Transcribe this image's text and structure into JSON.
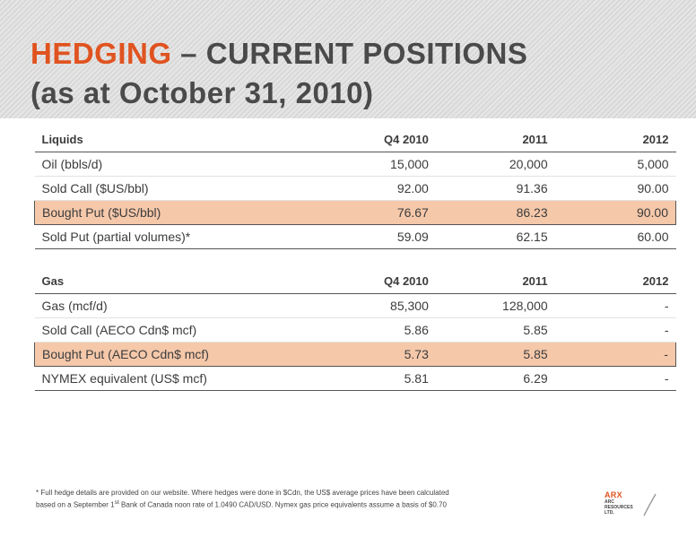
{
  "title": {
    "accent": "HEDGING",
    "rest": " – CURRENT POSITIONS",
    "line2": "(as at October 31, 2010)"
  },
  "liquids": {
    "headers": [
      "Liquids",
      "Q4 2010",
      "2011",
      "2012"
    ],
    "rows": [
      {
        "label": "Oil (bbls/d)",
        "q4_2010": "15,000",
        "y2011": "20,000",
        "y2012": "5,000"
      },
      {
        "label": "Sold Call ($US/bbl)",
        "q4_2010": "92.00",
        "y2011": "91.36",
        "y2012": "90.00"
      },
      {
        "label": "Bought Put ($US/bbl)",
        "q4_2010": "76.67",
        "y2011": "86.23",
        "y2012": "90.00"
      },
      {
        "label": "Sold Put (partial volumes)*",
        "q4_2010": "59.09",
        "y2011": "62.15",
        "y2012": "60.00"
      }
    ]
  },
  "gas": {
    "headers": [
      "Gas",
      "Q4 2010",
      "2011",
      "2012"
    ],
    "rows": [
      {
        "label": "Gas (mcf/d)",
        "q4_2010": "85,300",
        "y2011": "128,000",
        "y2012": "-"
      },
      {
        "label": "Sold Call (AECO Cdn$ mcf)",
        "q4_2010": "5.86",
        "y2011": "5.85",
        "y2012": "-"
      },
      {
        "label": "Bought Put (AECO Cdn$ mcf)",
        "q4_2010": "5.73",
        "y2011": "5.85",
        "y2012": "-"
      },
      {
        "label": "NYMEX equivalent (US$ mcf)",
        "q4_2010": "5.81",
        "y2011": "6.29",
        "y2012": "-"
      }
    ]
  },
  "footnote": {
    "line1": "* Full hedge details are provided on our website. Where hedges were done in $Cdn, the US$ average prices have been calculated",
    "line2_a": "based on a September 1",
    "line2_sup": "st",
    "line2_b": " Bank of Canada noon rate of 1.0490 CAD/USD. Nymex gas price equivalents assume a basis of $0.70"
  },
  "logo": {
    "name": "ARX",
    "sub1": "ARC",
    "sub2": "RESOURCES",
    "sub3": "LTD."
  },
  "colors": {
    "accent": "#e0531f",
    "highlight": "#f5c8aa"
  }
}
